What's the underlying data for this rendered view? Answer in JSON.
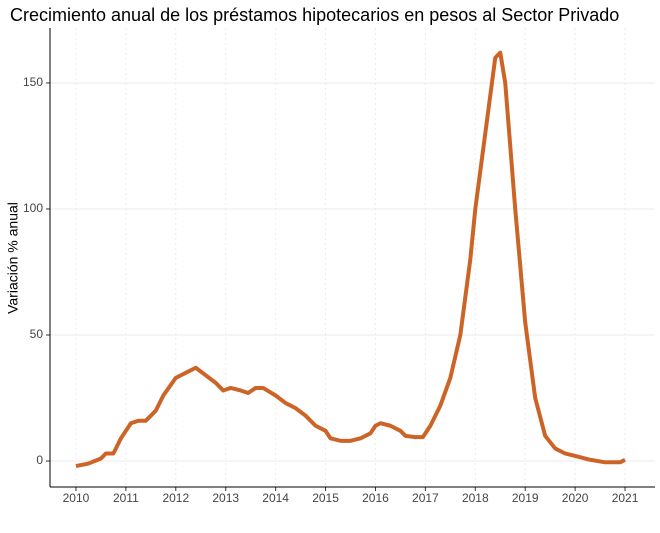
{
  "chart_data": {
    "type": "line",
    "title": "Crecimiento anual de los préstamos hipotecarios en pesos al Sector Privado",
    "y_label": "Variación % anual",
    "x": [
      2010.0,
      2010.25,
      2010.5,
      2010.6,
      2010.75,
      2010.9,
      2011.0,
      2011.1,
      2011.25,
      2011.4,
      2011.6,
      2011.75,
      2012.0,
      2012.2,
      2012.4,
      2012.6,
      2012.8,
      2012.95,
      2013.1,
      2013.3,
      2013.45,
      2013.6,
      2013.75,
      2014.0,
      2014.2,
      2014.4,
      2014.6,
      2014.8,
      2015.0,
      2015.1,
      2015.3,
      2015.5,
      2015.7,
      2015.9,
      2016.0,
      2016.1,
      2016.3,
      2016.5,
      2016.6,
      2016.8,
      2016.95,
      2017.1,
      2017.3,
      2017.5,
      2017.7,
      2017.9,
      2018.0,
      2018.2,
      2018.4,
      2018.5,
      2018.6,
      2018.8,
      2019.0,
      2019.2,
      2019.4,
      2019.6,
      2019.8,
      2020.0,
      2020.3,
      2020.6,
      2020.9,
      2021.0
    ],
    "series": [
      {
        "color": "#cd6427",
        "values": [
          -2,
          -1,
          1,
          3,
          3,
          9,
          12,
          15,
          16,
          16,
          20,
          26,
          33,
          35,
          37,
          34,
          31,
          28,
          29,
          28,
          27,
          29,
          29,
          26,
          23,
          21,
          18,
          14,
          12,
          9,
          8,
          8,
          9,
          11,
          14,
          15,
          14,
          12,
          10,
          9.5,
          9.5,
          14,
          22,
          33,
          50,
          80,
          100,
          130,
          160,
          162,
          150,
          100,
          55,
          25,
          10,
          5,
          3,
          2,
          0.5,
          -0.5,
          -0.5,
          0.5
        ]
      }
    ],
    "xlim": [
      2009.48,
      2021.6
    ],
    "xticks": [
      2010,
      2011,
      2012,
      2013,
      2014,
      2015,
      2016,
      2017,
      2018,
      2019,
      2020,
      2021
    ],
    "ylim": [
      -10.3,
      171.8
    ],
    "yticks": [
      0,
      50,
      100,
      150
    ],
    "grid": true
  }
}
